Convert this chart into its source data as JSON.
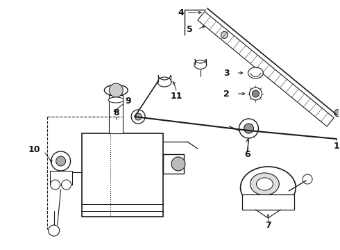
{
  "background_color": "#ffffff",
  "line_color": "#1a1a1a",
  "label_color": "#111111",
  "fig_width": 4.9,
  "fig_height": 3.6,
  "dpi": 100,
  "label_fontsize": 9
}
